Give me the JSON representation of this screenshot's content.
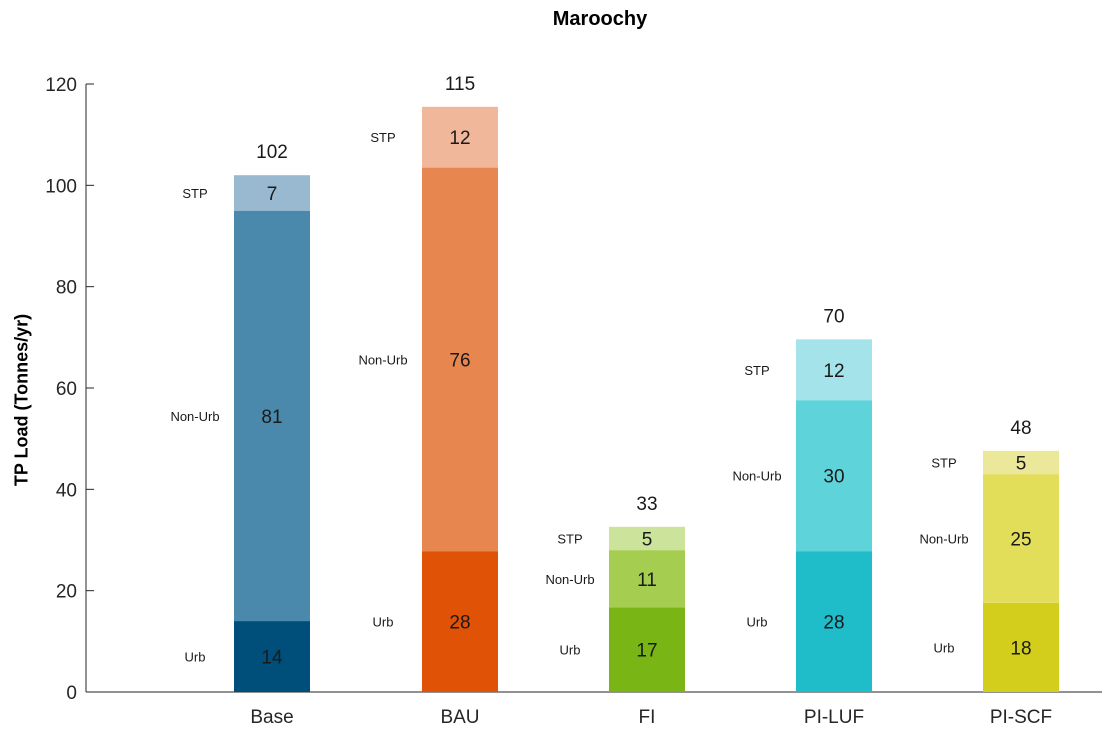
{
  "chart_data": {
    "type": "bar",
    "stacked": true,
    "title": "Maroochy",
    "xlabel": "",
    "ylabel": "TP Load (Tonnes/yr)",
    "ylim": [
      0,
      120
    ],
    "yticks": [
      0,
      20,
      40,
      60,
      80,
      100,
      120
    ],
    "categories": [
      "Base",
      "BAU",
      "FI",
      "PI-LUF",
      "PI-SCF"
    ],
    "segment_order": [
      "Urb",
      "Non-Urb",
      "STP"
    ],
    "bars": [
      {
        "category": "Base",
        "total": 102,
        "total_value": 102,
        "segments": [
          {
            "name": "Urb",
            "value": 14,
            "display": "14",
            "color": "#004e7a"
          },
          {
            "name": "Non-Urb",
            "value": 81,
            "display": "81",
            "color": "#4a89ab"
          },
          {
            "name": "STP",
            "value": 7,
            "display": "7",
            "color": "#98b9cf"
          }
        ]
      },
      {
        "category": "BAU",
        "total": 115,
        "total_value": 115.5,
        "segments": [
          {
            "name": "Urb",
            "value": 27.8,
            "display": "28",
            "color": "#e05206"
          },
          {
            "name": "Non-Urb",
            "value": 75.7,
            "display": "76",
            "color": "#e8864f"
          },
          {
            "name": "STP",
            "value": 12,
            "display": "12",
            "color": "#f1b79b"
          }
        ]
      },
      {
        "category": "FI",
        "total": 33,
        "total_value": 32.6,
        "segments": [
          {
            "name": "Urb",
            "value": 16.7,
            "display": "17",
            "color": "#78b515"
          },
          {
            "name": "Non-Urb",
            "value": 11.3,
            "display": "11",
            "color": "#a5cd50"
          },
          {
            "name": "STP",
            "value": 4.6,
            "display": "5",
            "color": "#cce39b"
          }
        ]
      },
      {
        "category": "PI-LUF",
        "total": 70,
        "total_value": 69.6,
        "segments": [
          {
            "name": "Urb",
            "value": 27.8,
            "display": "28",
            "color": "#1fbcca"
          },
          {
            "name": "Non-Urb",
            "value": 29.8,
            "display": "30",
            "color": "#5fd3da"
          },
          {
            "name": "STP",
            "value": 12,
            "display": "12",
            "color": "#a3e3e9"
          }
        ]
      },
      {
        "category": "PI-SCF",
        "total": 48,
        "total_value": 47.6,
        "segments": [
          {
            "name": "Urb",
            "value": 17.6,
            "display": "18",
            "color": "#d3cd1b"
          },
          {
            "name": "Non-Urb",
            "value": 25.4,
            "display": "25",
            "color": "#e2de5a"
          },
          {
            "name": "STP",
            "value": 4.6,
            "display": "5",
            "color": "#ece89a"
          }
        ]
      }
    ]
  }
}
